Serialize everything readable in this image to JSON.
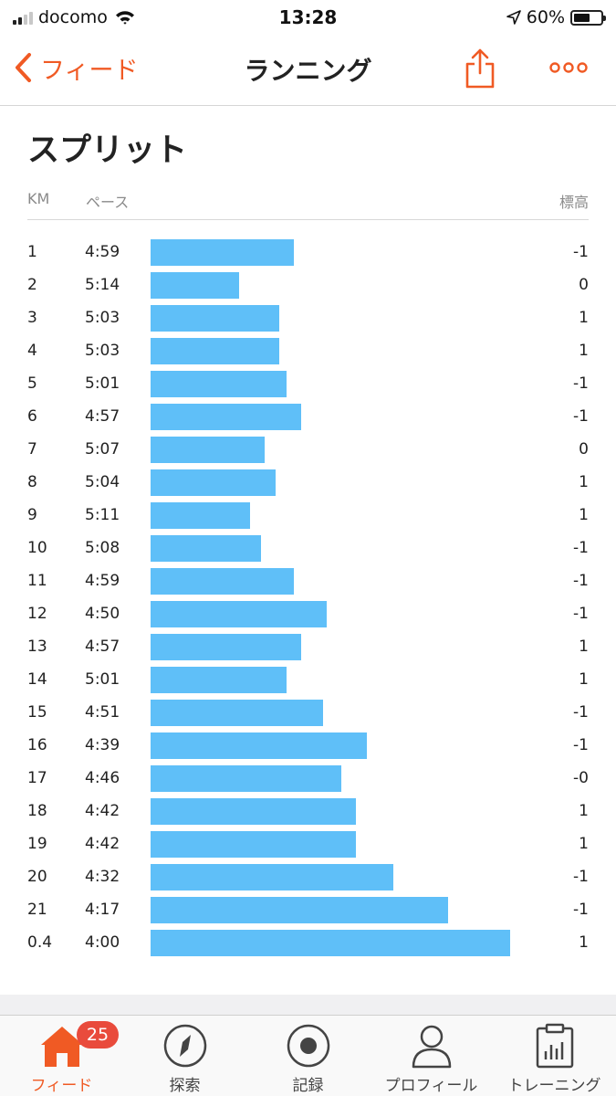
{
  "status_bar": {
    "carrier": "docomo",
    "time": "13:28",
    "battery_percent": "60%",
    "battery_level": 0.6,
    "signal_bars_active": 2
  },
  "nav": {
    "back_label": "フィード",
    "title": "ランニング",
    "share_icon": "share-icon",
    "more_icon": "more-icon"
  },
  "splits": {
    "title": "スプリット",
    "headers": {
      "km": "KM",
      "pace": "ペース",
      "elevation": "標高"
    },
    "rows": [
      {
        "km": "1",
        "pace": "4:59",
        "elevation": "-1"
      },
      {
        "km": "2",
        "pace": "5:14",
        "elevation": "0"
      },
      {
        "km": "3",
        "pace": "5:03",
        "elevation": "1"
      },
      {
        "km": "4",
        "pace": "5:03",
        "elevation": "1"
      },
      {
        "km": "5",
        "pace": "5:01",
        "elevation": "-1"
      },
      {
        "km": "6",
        "pace": "4:57",
        "elevation": "-1"
      },
      {
        "km": "7",
        "pace": "5:07",
        "elevation": "0"
      },
      {
        "km": "8",
        "pace": "5:04",
        "elevation": "1"
      },
      {
        "km": "9",
        "pace": "5:11",
        "elevation": "1"
      },
      {
        "km": "10",
        "pace": "5:08",
        "elevation": "-1"
      },
      {
        "km": "11",
        "pace": "4:59",
        "elevation": "-1"
      },
      {
        "km": "12",
        "pace": "4:50",
        "elevation": "-1"
      },
      {
        "km": "13",
        "pace": "4:57",
        "elevation": "1"
      },
      {
        "km": "14",
        "pace": "5:01",
        "elevation": "1"
      },
      {
        "km": "15",
        "pace": "4:51",
        "elevation": "-1"
      },
      {
        "km": "16",
        "pace": "4:39",
        "elevation": "-1"
      },
      {
        "km": "17",
        "pace": "4:46",
        "elevation": "-0"
      },
      {
        "km": "18",
        "pace": "4:42",
        "elevation": "1"
      },
      {
        "km": "19",
        "pace": "4:42",
        "elevation": "1"
      },
      {
        "km": "20",
        "pace": "4:32",
        "elevation": "-1"
      },
      {
        "km": "21",
        "pace": "4:17",
        "elevation": "-1"
      },
      {
        "km": "0.4",
        "pace": "4:00",
        "elevation": "1"
      }
    ]
  },
  "tabbar": {
    "tabs": [
      {
        "label": "フィード",
        "icon": "home-icon",
        "active": true,
        "badge": "25"
      },
      {
        "label": "探索",
        "icon": "compass-icon",
        "active": false
      },
      {
        "label": "記録",
        "icon": "record-icon",
        "active": false
      },
      {
        "label": "プロフィール",
        "icon": "profile-icon",
        "active": false
      },
      {
        "label": "トレーニング",
        "icon": "training-icon",
        "active": false
      }
    ]
  },
  "colors": {
    "accent": "#f05a24",
    "bar": "#5fbff8",
    "badge": "#e94b3c"
  }
}
